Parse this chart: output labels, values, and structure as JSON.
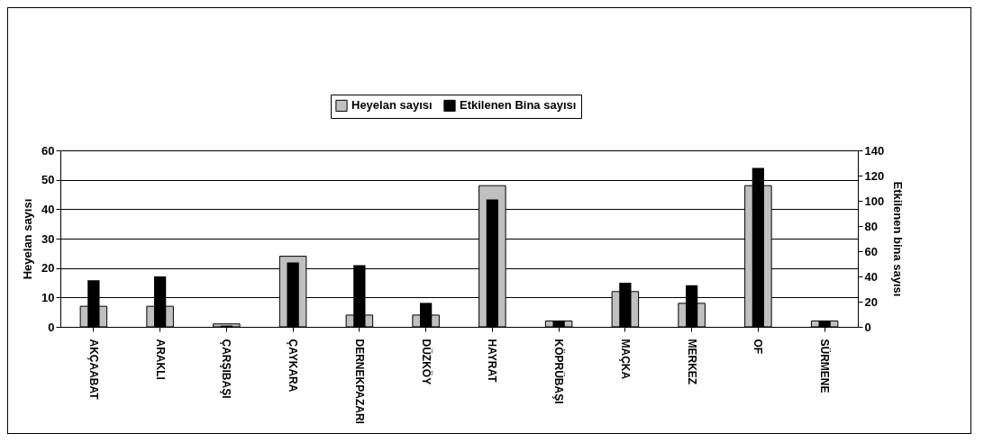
{
  "chart_data": {
    "type": "bar",
    "categories": [
      "AKÇAABAT",
      "ARAKLI",
      "ÇARŞIBAŞI",
      "ÇAYKARA",
      "DERNEKPAZARI",
      "DÜZKÖY",
      "HAYRAT",
      "KÖPRÜBAŞI",
      "MAÇKA",
      "MERKEZ",
      "OF",
      "SÜRMENE"
    ],
    "series": [
      {
        "name": "Heyelan sayısı",
        "color": "#c0c0c0",
        "values": [
          7,
          7,
          1,
          24,
          4,
          4,
          48,
          2,
          12,
          8,
          48,
          2
        ]
      },
      {
        "name": "Etkilenen Bina sayısı",
        "color": "#000000",
        "axis": "y2",
        "values": [
          37,
          40,
          1,
          51,
          49,
          19,
          101,
          5,
          35,
          33,
          126,
          5
        ]
      }
    ],
    "ylabel": "Heyelan sayısı",
    "y2label": "Etkilenen bina sayısı",
    "ylim": [
      0,
      60
    ],
    "yticks": [
      0,
      10,
      20,
      30,
      40,
      50,
      60
    ],
    "y2lim": [
      0,
      140
    ],
    "y2ticks": [
      0,
      20,
      40,
      60,
      80,
      100,
      120,
      140
    ],
    "grid": "y",
    "legend": "top"
  }
}
